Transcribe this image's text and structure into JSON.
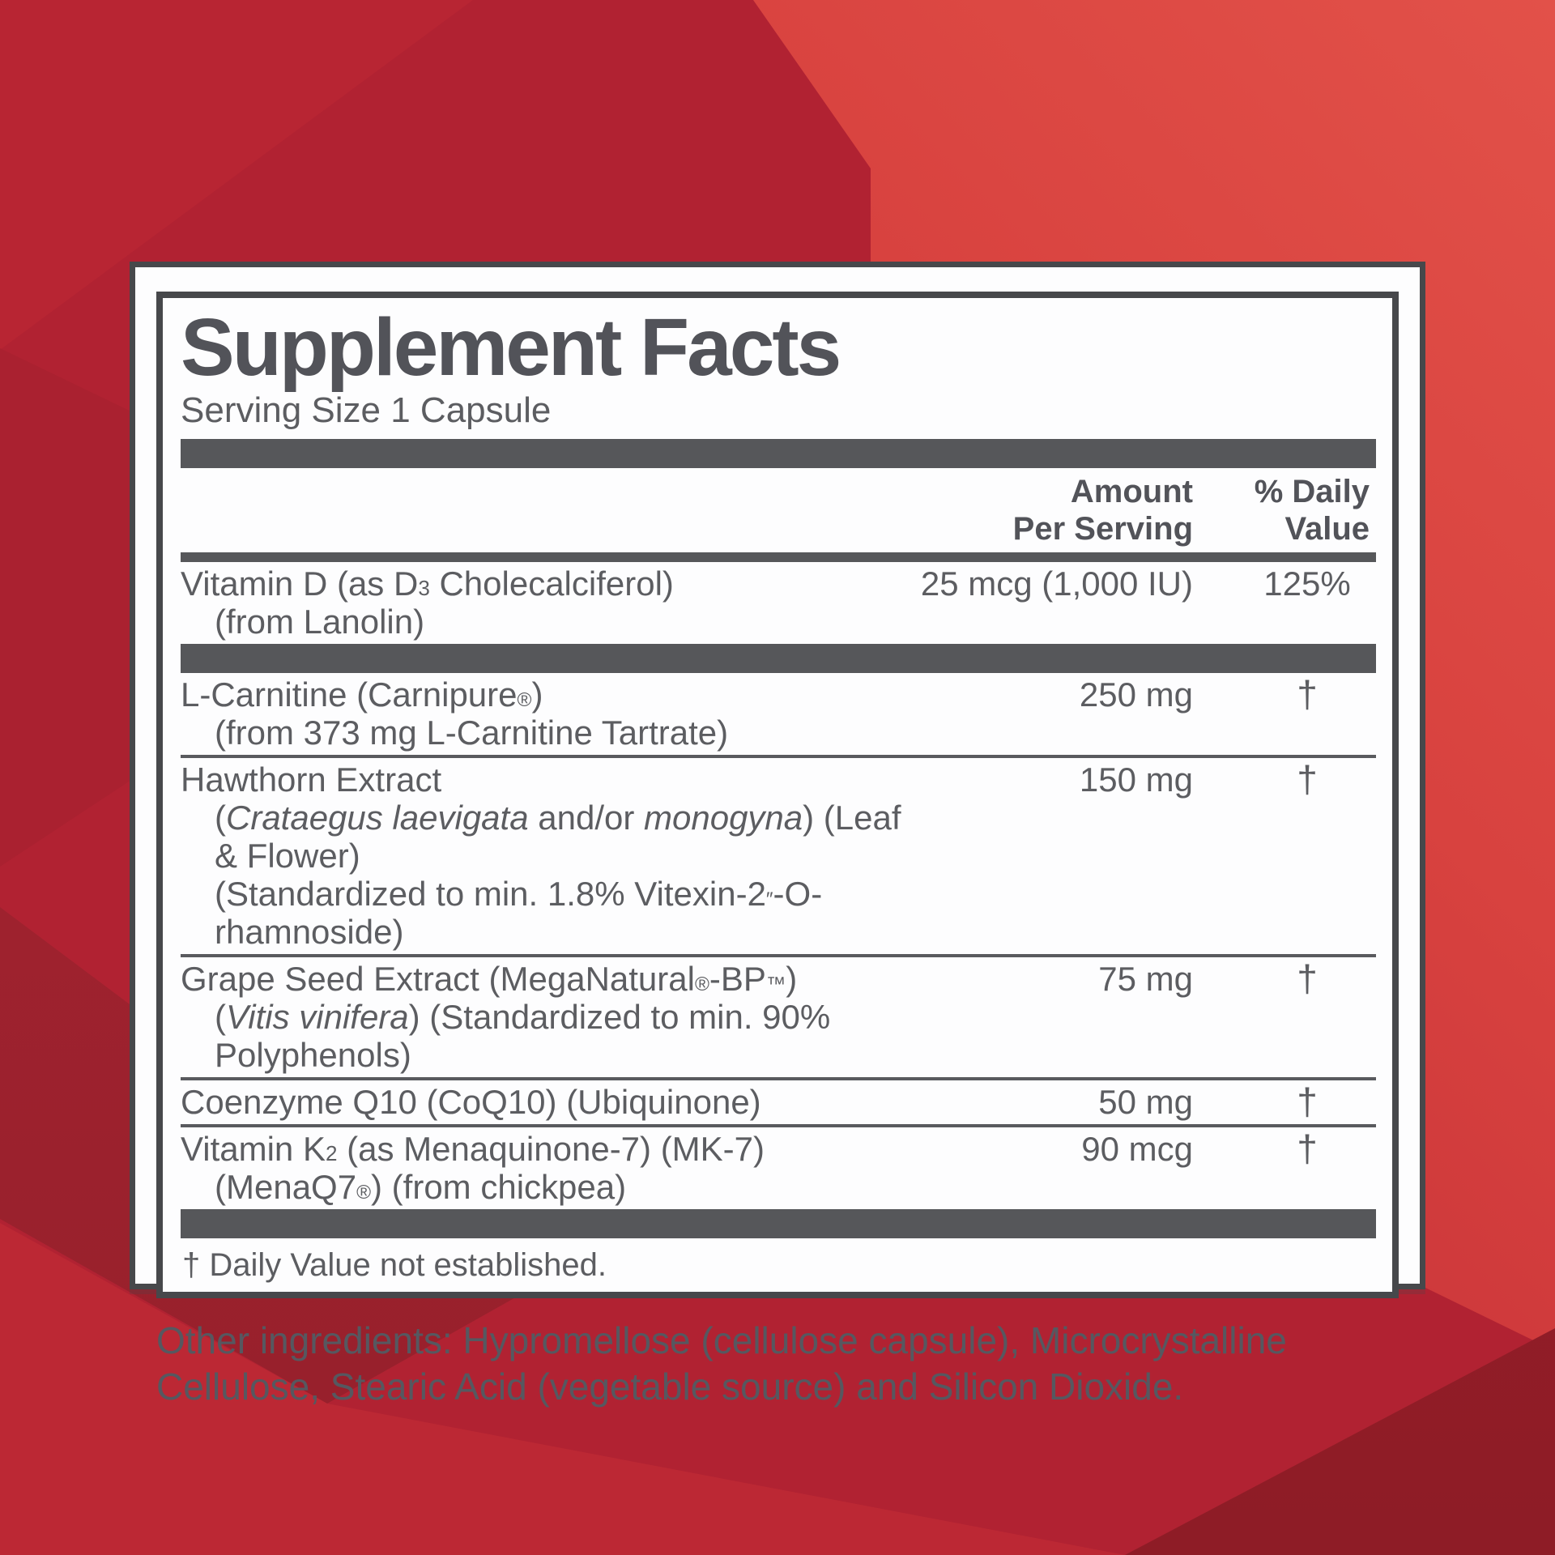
{
  "background": {
    "base_color": "#b12232",
    "bright_color": "#d8423f",
    "dark_color": "#96202b"
  },
  "panel": {
    "title": "Supplement Facts",
    "serving_size": "Serving Size 1 Capsule",
    "columns": {
      "amount_line1": "Amount",
      "amount_line2": "Per Serving",
      "dv_line1": "% Daily",
      "dv_line2": "Value"
    },
    "rows": [
      {
        "name_html": "Vitamin D (as D<sub>3</sub> Cholecalciferol)",
        "sub_lines_html": [
          "(from Lanolin)"
        ],
        "amount": "25 mcg (1,000 IU)",
        "daily_value": "125%",
        "separator_after": "thick"
      },
      {
        "name_html": "L-Carnitine (Carnipure<sup>®</sup>)",
        "sub_lines_html": [
          "(from 373 mg L-Carnitine Tartrate)"
        ],
        "amount": "250 mg",
        "daily_value": "†",
        "separator_after": "thin"
      },
      {
        "name_html": "Hawthorn Extract",
        "sub_lines_html": [
          "(<i>Crataegus laevigata</i> and/or <i>monogyna</i>) (Leaf &amp; Flower)",
          "(Standardized to min. 1.8% Vitexin-2<sup>″</sup>-O-rhamnoside)"
        ],
        "amount": "150 mg",
        "daily_value": "†",
        "separator_after": "thin"
      },
      {
        "name_html": "Grape Seed Extract (MegaNatural<sup>®</sup>-BP<sup>™</sup>)",
        "sub_lines_html": [
          "(<i>Vitis vinifera</i>) (Standardized to min. 90% Polyphenols)"
        ],
        "amount": "75 mg",
        "daily_value": "†",
        "separator_after": "thin"
      },
      {
        "name_html": "Coenzyme Q10 (CoQ10) (Ubiquinone)",
        "sub_lines_html": [],
        "amount": "50 mg",
        "daily_value": "†",
        "separator_after": "thin"
      },
      {
        "name_html": "Vitamin K<sub>2</sub> (as Menaquinone-7) (MK-7)",
        "sub_lines_html": [
          "(MenaQ7<sup>®</sup>) (from chickpea)"
        ],
        "amount": "90 mcg",
        "daily_value": "†",
        "separator_after": "thick"
      }
    ],
    "footnote": "† Daily Value not established.",
    "other_ingredients": "Other ingredients: Hypromellose (cellulose capsule), Microcrystalline Cellulose, Stearic Acid (vegetable source) and Silicon Dioxide."
  }
}
